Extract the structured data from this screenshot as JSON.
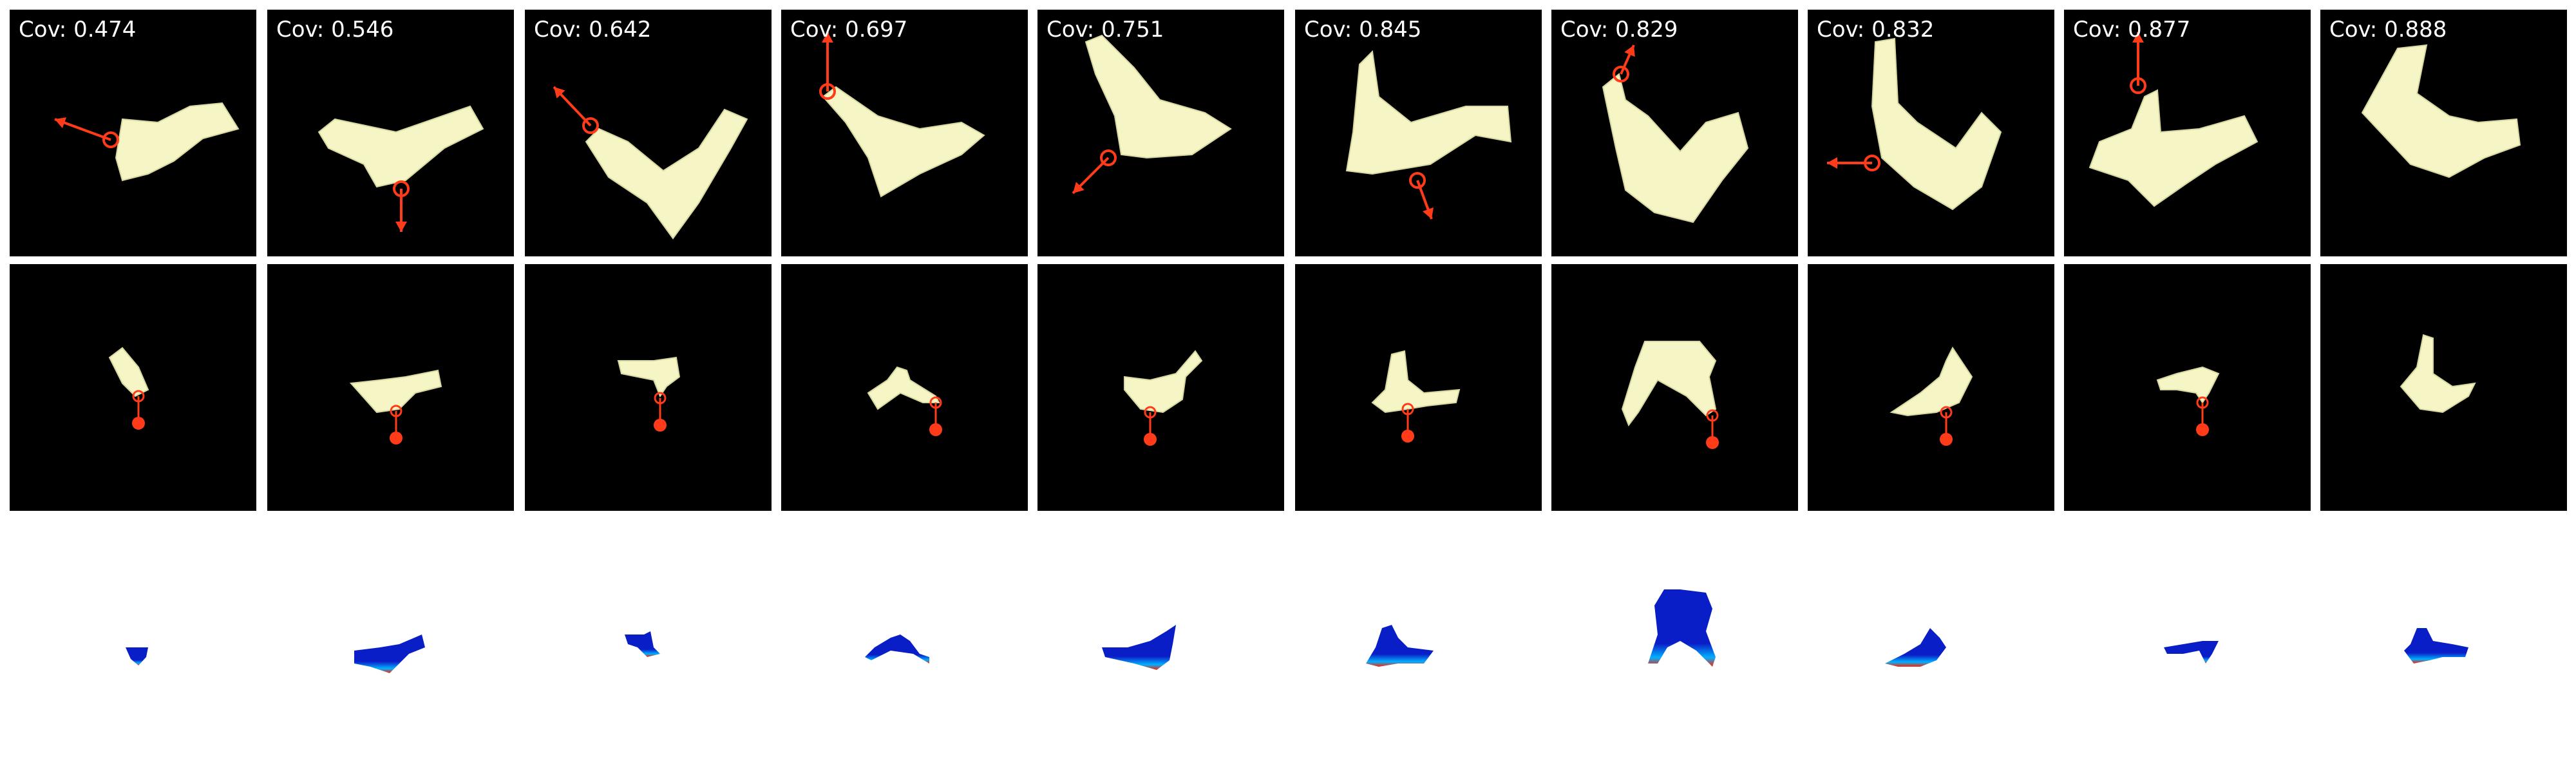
{
  "figure": {
    "coverage_prefix": "Cov:",
    "colors": {
      "background_dark": "#000000",
      "cloth": "#f5f5c6",
      "cloth_shade": "#d8d8a0",
      "action_arrow": "#ff3b1a",
      "heat_low": "#0a1ec8",
      "heat_mid": "#00b0ff",
      "heat_high": "#ff2000"
    },
    "columns": [
      {
        "coverage": "0.474",
        "arrow_direction": "left"
      },
      {
        "coverage": "0.546",
        "arrow_direction": "down"
      },
      {
        "coverage": "0.642",
        "arrow_direction": "up-left"
      },
      {
        "coverage": "0.697",
        "arrow_direction": "up"
      },
      {
        "coverage": "0.751",
        "arrow_direction": "down-left"
      },
      {
        "coverage": "0.845",
        "arrow_direction": "down"
      },
      {
        "coverage": "0.829",
        "arrow_direction": "up"
      },
      {
        "coverage": "0.832",
        "arrow_direction": "left"
      },
      {
        "coverage": "0.877",
        "arrow_direction": "up"
      },
      {
        "coverage": "0.888",
        "arrow_direction": "none"
      }
    ]
  }
}
